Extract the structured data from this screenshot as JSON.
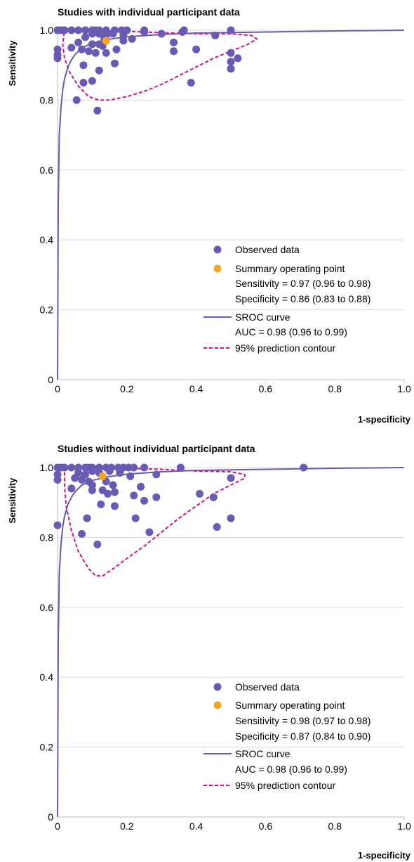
{
  "colors": {
    "observed": "#6a5ab3",
    "summary": "#f5a623",
    "sroc": "#6a5ab3",
    "contour": "#c8157f",
    "grid": "#dcdcdc",
    "axis": "#bfbfbf"
  },
  "chart_data": [
    {
      "type": "scatter",
      "title": "Studies with individual participant data",
      "xlabel": "1-specificity",
      "ylabel": "Sensitivity",
      "xlim": [
        0,
        1.0
      ],
      "ylim": [
        0,
        1.0
      ],
      "x_ticks": [
        "0",
        "0.2",
        "0.4",
        "0.6",
        "0.8",
        "1.0"
      ],
      "y_ticks": [
        "0",
        "0.2",
        "0.4",
        "0.6",
        "0.8",
        "1.0"
      ],
      "grid": "horizontal",
      "legend": {
        "observed": "Observed data",
        "summary_title": "Summary operating point",
        "summary_sens": "Sensitivity = 0.97 (0.96 to 0.98)",
        "summary_spec": "Specificity = 0.86 (0.83 to 0.88)",
        "sroc_title": "SROC curve",
        "sroc_auc": "AUC = 0.98 (0.96 to 0.99)",
        "contour": "95% prediction contour"
      },
      "observed": [
        [
          0.0,
          1.0
        ],
        [
          0.01,
          1.0
        ],
        [
          0.02,
          1.0
        ],
        [
          0.0,
          0.945
        ],
        [
          0.0,
          0.93
        ],
        [
          0.0,
          0.92
        ],
        [
          0.04,
          1.0
        ],
        [
          0.06,
          1.0
        ],
        [
          0.08,
          1.0
        ],
        [
          0.1,
          1.0
        ],
        [
          0.11,
          1.0
        ],
        [
          0.12,
          1.0
        ],
        [
          0.14,
          1.0
        ],
        [
          0.165,
          1.0
        ],
        [
          0.185,
          1.0
        ],
        [
          0.2,
          1.0
        ],
        [
          0.25,
          1.0
        ],
        [
          0.365,
          1.0
        ],
        [
          0.5,
          1.0
        ],
        [
          0.06,
          0.965
        ],
        [
          0.08,
          0.98
        ],
        [
          0.1,
          0.99
        ],
        [
          0.12,
          0.99
        ],
        [
          0.14,
          0.985
        ],
        [
          0.16,
          0.99
        ],
        [
          0.19,
          0.985
        ],
        [
          0.215,
          0.975
        ],
        [
          0.25,
          0.995
        ],
        [
          0.3,
          0.99
        ],
        [
          0.36,
          0.995
        ],
        [
          0.455,
          0.985
        ],
        [
          0.04,
          0.95
        ],
        [
          0.07,
          0.945
        ],
        [
          0.09,
          0.94
        ],
        [
          0.11,
          0.935
        ],
        [
          0.13,
          0.955
        ],
        [
          0.14,
          0.935
        ],
        [
          0.17,
          0.945
        ],
        [
          0.1,
          0.96
        ],
        [
          0.12,
          0.96
        ],
        [
          0.135,
          0.975
        ],
        [
          0.19,
          0.97
        ],
        [
          0.335,
          0.965
        ],
        [
          0.335,
          0.94
        ],
        [
          0.4,
          0.945
        ],
        [
          0.5,
          0.935
        ],
        [
          0.5,
          0.91
        ],
        [
          0.5,
          0.89
        ],
        [
          0.52,
          0.92
        ],
        [
          0.075,
          0.9
        ],
        [
          0.12,
          0.885
        ],
        [
          0.165,
          0.905
        ],
        [
          0.075,
          0.85
        ],
        [
          0.1,
          0.855
        ],
        [
          0.385,
          0.85
        ],
        [
          0.055,
          0.8
        ],
        [
          0.115,
          0.77
        ]
      ],
      "summary_point": [
        0.14,
        0.97
      ],
      "sroc": [
        [
          0.0,
          0.0
        ],
        [
          0.002,
          0.5
        ],
        [
          0.005,
          0.7
        ],
        [
          0.008,
          0.75
        ],
        [
          0.01,
          0.78
        ],
        [
          0.015,
          0.83
        ],
        [
          0.02,
          0.86
        ],
        [
          0.03,
          0.895
        ],
        [
          0.04,
          0.915
        ],
        [
          0.05,
          0.93
        ],
        [
          0.07,
          0.95
        ],
        [
          0.1,
          0.963
        ],
        [
          0.14,
          0.973
        ],
        [
          0.2,
          0.981
        ],
        [
          0.3,
          0.988
        ],
        [
          0.4,
          0.992
        ],
        [
          0.6,
          0.995
        ],
        [
          0.8,
          0.998
        ],
        [
          1.0,
          1.0
        ]
      ],
      "contour": [
        [
          0.02,
          1.0
        ],
        [
          0.1,
          1.0
        ],
        [
          0.2,
          0.997
        ],
        [
          0.3,
          0.993
        ],
        [
          0.4,
          0.99
        ],
        [
          0.5,
          0.99
        ],
        [
          0.56,
          0.985
        ],
        [
          0.575,
          0.975
        ],
        [
          0.55,
          0.96
        ],
        [
          0.5,
          0.94
        ],
        [
          0.45,
          0.92
        ],
        [
          0.4,
          0.895
        ],
        [
          0.35,
          0.87
        ],
        [
          0.3,
          0.845
        ],
        [
          0.25,
          0.825
        ],
        [
          0.2,
          0.81
        ],
        [
          0.15,
          0.8
        ],
        [
          0.12,
          0.8
        ],
        [
          0.09,
          0.81
        ],
        [
          0.06,
          0.84
        ],
        [
          0.035,
          0.88
        ],
        [
          0.02,
          0.92
        ],
        [
          0.015,
          0.96
        ],
        [
          0.02,
          1.0
        ]
      ]
    },
    {
      "type": "scatter",
      "title": "Studies without individual participant data",
      "xlabel": "1-specificity",
      "ylabel": "Sensitivity",
      "xlim": [
        0,
        1.0
      ],
      "ylim": [
        0,
        1.0
      ],
      "x_ticks": [
        "0",
        "0.2",
        "0.4",
        "0.6",
        "0.8",
        "1.0"
      ],
      "y_ticks": [
        "0",
        "0.2",
        "0.4",
        "0.6",
        "0.8",
        "1.0"
      ],
      "grid": "horizontal",
      "legend": {
        "observed": "Observed data",
        "summary_title": "Summary operating point",
        "summary_sens": "Sensitivity = 0.98 (0.97 to 0.98)",
        "summary_spec": "Specificity = 0.87 (0.84 to 0.90)",
        "sroc_title": "SROC curve",
        "sroc_auc": "AUC = 0.98 (0.96 to 0.99)",
        "contour": "95% prediction contour"
      },
      "observed": [
        [
          0.0,
          1.0
        ],
        [
          0.01,
          1.0
        ],
        [
          0.02,
          1.0
        ],
        [
          0.0,
          0.98
        ],
        [
          0.0,
          0.965
        ],
        [
          0.04,
          1.0
        ],
        [
          0.06,
          1.0
        ],
        [
          0.08,
          1.0
        ],
        [
          0.09,
          1.0
        ],
        [
          0.1,
          1.0
        ],
        [
          0.12,
          1.0
        ],
        [
          0.14,
          1.0
        ],
        [
          0.155,
          1.0
        ],
        [
          0.175,
          1.0
        ],
        [
          0.19,
          1.0
        ],
        [
          0.205,
          1.0
        ],
        [
          0.22,
          1.0
        ],
        [
          0.25,
          1.0
        ],
        [
          0.355,
          1.0
        ],
        [
          0.71,
          1.0
        ],
        [
          0.06,
          0.985
        ],
        [
          0.08,
          0.98
        ],
        [
          0.1,
          0.99
        ],
        [
          0.12,
          0.985
        ],
        [
          0.15,
          0.99
        ],
        [
          0.18,
          0.985
        ],
        [
          0.21,
          0.975
        ],
        [
          0.285,
          0.98
        ],
        [
          0.5,
          0.97
        ],
        [
          0.05,
          0.97
        ],
        [
          0.07,
          0.965
        ],
        [
          0.09,
          0.96
        ],
        [
          0.1,
          0.95
        ],
        [
          0.14,
          0.96
        ],
        [
          0.16,
          0.95
        ],
        [
          0.04,
          0.94
        ],
        [
          0.1,
          0.935
        ],
        [
          0.13,
          0.935
        ],
        [
          0.145,
          0.925
        ],
        [
          0.165,
          0.93
        ],
        [
          0.24,
          0.945
        ],
        [
          0.22,
          0.92
        ],
        [
          0.41,
          0.925
        ],
        [
          0.45,
          0.915
        ],
        [
          0.25,
          0.905
        ],
        [
          0.285,
          0.915
        ],
        [
          0.125,
          0.895
        ],
        [
          0.165,
          0.89
        ],
        [
          0.085,
          0.855
        ],
        [
          0.225,
          0.855
        ],
        [
          0.5,
          0.855
        ],
        [
          0.46,
          0.83
        ],
        [
          0.265,
          0.815
        ],
        [
          0.07,
          0.81
        ],
        [
          0.115,
          0.78
        ],
        [
          0.0,
          0.835
        ]
      ],
      "summary_point": [
        0.13,
        0.975
      ],
      "sroc": [
        [
          0.0,
          0.0
        ],
        [
          0.002,
          0.5
        ],
        [
          0.005,
          0.7
        ],
        [
          0.008,
          0.75
        ],
        [
          0.01,
          0.78
        ],
        [
          0.015,
          0.83
        ],
        [
          0.02,
          0.86
        ],
        [
          0.03,
          0.895
        ],
        [
          0.04,
          0.915
        ],
        [
          0.05,
          0.93
        ],
        [
          0.07,
          0.95
        ],
        [
          0.1,
          0.963
        ],
        [
          0.14,
          0.973
        ],
        [
          0.2,
          0.981
        ],
        [
          0.3,
          0.988
        ],
        [
          0.4,
          0.992
        ],
        [
          0.6,
          0.995
        ],
        [
          0.8,
          0.998
        ],
        [
          1.0,
          1.0
        ]
      ],
      "contour": [
        [
          0.02,
          1.0
        ],
        [
          0.1,
          1.0
        ],
        [
          0.2,
          0.998
        ],
        [
          0.3,
          0.995
        ],
        [
          0.4,
          0.99
        ],
        [
          0.5,
          0.988
        ],
        [
          0.54,
          0.98
        ],
        [
          0.54,
          0.97
        ],
        [
          0.5,
          0.95
        ],
        [
          0.45,
          0.925
        ],
        [
          0.4,
          0.89
        ],
        [
          0.35,
          0.855
        ],
        [
          0.3,
          0.815
        ],
        [
          0.25,
          0.775
        ],
        [
          0.2,
          0.74
        ],
        [
          0.16,
          0.71
        ],
        [
          0.13,
          0.69
        ],
        [
          0.11,
          0.69
        ],
        [
          0.09,
          0.71
        ],
        [
          0.06,
          0.76
        ],
        [
          0.04,
          0.82
        ],
        [
          0.025,
          0.89
        ],
        [
          0.02,
          0.95
        ],
        [
          0.02,
          1.0
        ]
      ]
    }
  ]
}
